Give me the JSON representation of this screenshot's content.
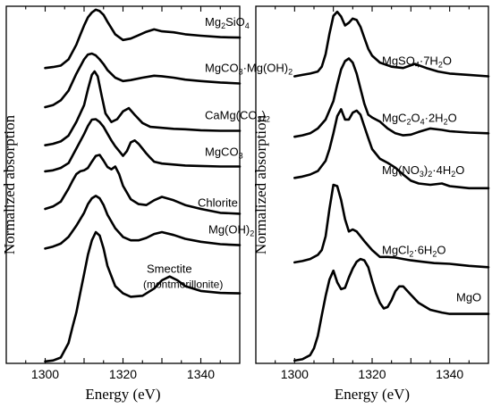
{
  "chart_data": [
    {
      "type": "line",
      "title": "",
      "xlabel": "Energy (eV)",
      "ylabel": "Normalized absorption",
      "xlim": [
        1290,
        1350
      ],
      "ylim": [
        0,
        7.4
      ],
      "xticks": [
        1300,
        1320,
        1340
      ],
      "xtick_labels": [
        "1300",
        "1320",
        "1340"
      ],
      "yticks": false,
      "grid": false,
      "legend": "none",
      "series_labels_position": "right of each curve",
      "series": [
        {
          "label": {
            "parts": [
              {
                "t": "Mg"
              },
              {
                "t": "2",
                "sub": true
              },
              {
                "t": "SiO"
              },
              {
                "t": "4",
                "sub": true
              }
            ]
          },
          "x": [
            1300,
            1302,
            1304,
            1306,
            1308,
            1309,
            1310,
            1311,
            1312,
            1313,
            1314,
            1315,
            1316,
            1318,
            1320,
            1322,
            1324,
            1326,
            1328,
            1330,
            1333,
            1336,
            1340,
            1345,
            1350
          ],
          "y": [
            6.12,
            6.14,
            6.17,
            6.3,
            6.6,
            6.8,
            7.0,
            7.17,
            7.27,
            7.33,
            7.3,
            7.22,
            7.08,
            6.82,
            6.7,
            6.73,
            6.8,
            6.87,
            6.92,
            6.88,
            6.86,
            6.82,
            6.79,
            6.76,
            6.75
          ]
        },
        {
          "label": {
            "parts": [
              {
                "t": "MgCO"
              },
              {
                "t": "3",
                "sub": true
              },
              {
                "t": "·Mg(OH)"
              },
              {
                "t": "2",
                "sub": true
              }
            ]
          },
          "x": [
            1300,
            1302,
            1304,
            1306,
            1308,
            1310,
            1311,
            1312,
            1313,
            1314,
            1315,
            1316,
            1318,
            1320,
            1322,
            1325,
            1328,
            1330,
            1333,
            1336,
            1340,
            1345,
            1350
          ],
          "y": [
            5.31,
            5.35,
            5.45,
            5.65,
            6.0,
            6.3,
            6.4,
            6.42,
            6.38,
            6.3,
            6.2,
            6.08,
            5.92,
            5.85,
            5.87,
            5.92,
            5.96,
            5.95,
            5.92,
            5.88,
            5.85,
            5.82,
            5.8
          ]
        },
        {
          "label": {
            "parts": [
              {
                "t": "CaMg(CO"
              },
              {
                "t": "3",
                "sub": true
              },
              {
                "t": ")"
              },
              {
                "t": "2",
                "sub": true
              }
            ]
          },
          "x": [
            1300,
            1302,
            1304,
            1306,
            1308,
            1310,
            1311,
            1312,
            1312.7,
            1313.5,
            1314.5,
            1315.5,
            1317,
            1318.5,
            1320,
            1321.5,
            1323,
            1325,
            1327,
            1330,
            1333,
            1336,
            1340,
            1345,
            1350
          ],
          "y": [
            4.52,
            4.55,
            4.6,
            4.72,
            5.0,
            5.35,
            5.68,
            5.98,
            6.05,
            5.95,
            5.55,
            5.18,
            5.0,
            5.06,
            5.22,
            5.29,
            5.15,
            4.98,
            4.9,
            4.88,
            4.86,
            4.85,
            4.83,
            4.82,
            4.82
          ]
        },
        {
          "label": {
            "parts": [
              {
                "t": "MgCO"
              },
              {
                "t": "3",
                "sub": true
              }
            ]
          },
          "x": [
            1300,
            1302,
            1304,
            1306,
            1308,
            1310,
            1311,
            1312,
            1313,
            1314,
            1315,
            1316,
            1317,
            1318,
            1319,
            1320,
            1321,
            1322,
            1323,
            1324,
            1325,
            1326,
            1327,
            1328,
            1330,
            1333,
            1336,
            1340,
            1345,
            1350
          ],
          "y": [
            3.98,
            4.0,
            4.05,
            4.15,
            4.45,
            4.75,
            4.92,
            5.05,
            5.06,
            5.0,
            4.9,
            4.76,
            4.62,
            4.5,
            4.4,
            4.3,
            4.4,
            4.58,
            4.62,
            4.55,
            4.45,
            4.35,
            4.26,
            4.18,
            4.14,
            4.12,
            4.1,
            4.09,
            4.08,
            4.08
          ]
        },
        {
          "label": {
            "parts": [
              {
                "t": "Chlorite"
              }
            ]
          },
          "x": [
            1300,
            1302,
            1304,
            1306,
            1307,
            1308,
            1309,
            1310,
            1311,
            1312,
            1313,
            1314,
            1315,
            1316,
            1317,
            1318,
            1319,
            1320,
            1322,
            1324,
            1326,
            1328,
            1330,
            1333,
            1336,
            1340,
            1345,
            1350
          ],
          "y": [
            3.2,
            3.25,
            3.35,
            3.62,
            3.78,
            3.92,
            3.98,
            4.0,
            4.05,
            4.18,
            4.3,
            4.32,
            4.2,
            4.07,
            4.02,
            4.08,
            3.92,
            3.68,
            3.4,
            3.3,
            3.28,
            3.38,
            3.45,
            3.38,
            3.28,
            3.2,
            3.12,
            3.1
          ]
        },
        {
          "label": {
            "parts": [
              {
                "t": "Mg(OH)"
              },
              {
                "t": "2",
                "sub": true
              }
            ]
          },
          "x": [
            1300,
            1302,
            1304,
            1306,
            1308,
            1310,
            1311,
            1312,
            1313,
            1314,
            1315,
            1316,
            1318,
            1320,
            1322,
            1324,
            1326,
            1328,
            1330,
            1333,
            1336,
            1340,
            1345,
            1350
          ],
          "y": [
            2.38,
            2.42,
            2.48,
            2.62,
            2.85,
            3.12,
            3.3,
            3.42,
            3.47,
            3.42,
            3.28,
            3.08,
            2.8,
            2.62,
            2.55,
            2.55,
            2.6,
            2.68,
            2.72,
            2.66,
            2.58,
            2.52,
            2.47,
            2.45
          ]
        },
        {
          "label": {
            "parts": [
              {
                "t": "Smectite"
              },
              {
                "t": "(montmorillonite)",
                "br": true
              }
            ]
          },
          "x": [
            1300,
            1302,
            1304,
            1306,
            1307,
            1308,
            1309,
            1310,
            1311,
            1312,
            1313,
            1314,
            1315,
            1316,
            1318,
            1320,
            1322,
            1325,
            1328,
            1330,
            1332,
            1334,
            1336,
            1340,
            1345,
            1350
          ],
          "y": [
            0.04,
            0.06,
            0.12,
            0.42,
            0.75,
            1.05,
            1.45,
            1.85,
            2.25,
            2.55,
            2.72,
            2.65,
            2.38,
            2.02,
            1.6,
            1.45,
            1.38,
            1.4,
            1.55,
            1.72,
            1.8,
            1.72,
            1.6,
            1.5,
            1.46,
            1.45
          ]
        }
      ]
    },
    {
      "type": "line",
      "title": "",
      "xlabel": "Energy (eV)",
      "ylabel": "Normalized absorption",
      "xlim": [
        1290,
        1350
      ],
      "ylim": [
        0,
        5.2
      ],
      "xticks": [
        1300,
        1320,
        1340
      ],
      "xtick_labels": [
        "1300",
        "1320",
        "1340"
      ],
      "yticks": false,
      "grid": false,
      "legend": "none",
      "series_labels_position": "right of each curve",
      "series": [
        {
          "label": {
            "parts": [
              {
                "t": "MgSO"
              },
              {
                "t": "4",
                "sub": true
              },
              {
                "t": "·7H"
              },
              {
                "t": "2",
                "sub": true
              },
              {
                "t": "O"
              }
            ]
          },
          "x": [
            1300,
            1302,
            1304,
            1306,
            1307,
            1308,
            1309,
            1310,
            1311,
            1312,
            1313,
            1314,
            1315,
            1316,
            1317,
            1318,
            1319,
            1320,
            1322,
            1325,
            1328,
            1331,
            1334,
            1337,
            1340,
            1345,
            1350
          ],
          "y": [
            4.18,
            4.2,
            4.22,
            4.25,
            4.32,
            4.5,
            4.8,
            5.06,
            5.12,
            5.05,
            4.92,
            4.96,
            5.02,
            5.0,
            4.9,
            4.74,
            4.58,
            4.48,
            4.38,
            4.32,
            4.3,
            4.36,
            4.3,
            4.25,
            4.22,
            4.2,
            4.18
          ]
        },
        {
          "label": {
            "parts": [
              {
                "t": "MgC"
              },
              {
                "t": "2",
                "sub": true
              },
              {
                "t": "O"
              },
              {
                "t": "4",
                "sub": true
              },
              {
                "t": "·2H"
              },
              {
                "t": "2",
                "sub": true
              },
              {
                "t": "O"
              }
            ]
          },
          "x": [
            1300,
            1302,
            1304,
            1306,
            1308,
            1310,
            1311,
            1312,
            1313,
            1314,
            1315,
            1316,
            1317,
            1318,
            1319,
            1320,
            1322,
            1324,
            1326,
            1328,
            1330,
            1332,
            1335,
            1338,
            1340,
            1345,
            1350
          ],
          "y": [
            3.3,
            3.32,
            3.35,
            3.42,
            3.55,
            3.82,
            4.06,
            4.28,
            4.4,
            4.44,
            4.38,
            4.22,
            4.0,
            3.78,
            3.62,
            3.58,
            3.52,
            3.42,
            3.35,
            3.32,
            3.33,
            3.37,
            3.42,
            3.4,
            3.38,
            3.36,
            3.35
          ]
        },
        {
          "label": {
            "parts": [
              {
                "t": "Mg(NO"
              },
              {
                "t": "3",
                "sub": true
              },
              {
                "t": ")"
              },
              {
                "t": "2",
                "sub": true
              },
              {
                "t": "·4H"
              },
              {
                "t": "2",
                "sub": true
              },
              {
                "t": "O"
              }
            ]
          },
          "x": [
            1300,
            1302,
            1304,
            1306,
            1308,
            1309,
            1310,
            1311,
            1312,
            1313,
            1314,
            1315,
            1316,
            1317,
            1318,
            1319,
            1320,
            1322,
            1324,
            1326,
            1328,
            1330,
            1332,
            1335,
            1338,
            1340,
            1345,
            1350
          ],
          "y": [
            2.7,
            2.72,
            2.75,
            2.8,
            2.95,
            3.12,
            3.35,
            3.6,
            3.7,
            3.55,
            3.55,
            3.65,
            3.68,
            3.62,
            3.45,
            3.28,
            3.12,
            2.98,
            2.92,
            2.85,
            2.75,
            2.66,
            2.62,
            2.6,
            2.62,
            2.58,
            2.55,
            2.55
          ]
        },
        {
          "label": {
            "parts": [
              {
                "t": "MgCl"
              },
              {
                "t": "2",
                "sub": true
              },
              {
                "t": "·6H"
              },
              {
                "t": "2",
                "sub": true
              },
              {
                "t": "O"
              }
            ]
          },
          "x": [
            1300,
            1302,
            1304,
            1306,
            1307,
            1308,
            1309,
            1310,
            1311,
            1312,
            1313,
            1314,
            1315,
            1316,
            1318,
            1320,
            1322,
            1324,
            1326,
            1328,
            1330,
            1333,
            1336,
            1340,
            1345,
            1350
          ],
          "y": [
            1.47,
            1.49,
            1.52,
            1.58,
            1.65,
            1.85,
            2.25,
            2.6,
            2.58,
            2.38,
            2.1,
            1.92,
            1.95,
            1.92,
            1.78,
            1.65,
            1.55,
            1.55,
            1.54,
            1.52,
            1.5,
            1.48,
            1.46,
            1.45,
            1.42,
            1.4
          ]
        },
        {
          "label": {
            "parts": [
              {
                "t": "MgO"
              }
            ]
          },
          "x": [
            1300,
            1302,
            1304,
            1305,
            1306,
            1307,
            1308,
            1309,
            1310,
            1311,
            1312,
            1313,
            1314,
            1315,
            1316,
            1317,
            1318,
            1319,
            1320,
            1321,
            1322,
            1323,
            1324,
            1325,
            1326,
            1327,
            1328,
            1330,
            1332,
            1335,
            1338,
            1340,
            1345,
            1350
          ],
          "y": [
            0.04,
            0.06,
            0.12,
            0.22,
            0.4,
            0.7,
            0.98,
            1.22,
            1.35,
            1.18,
            1.08,
            1.1,
            1.25,
            1.38,
            1.48,
            1.52,
            1.5,
            1.4,
            1.2,
            1.02,
            0.88,
            0.8,
            0.82,
            0.92,
            1.05,
            1.12,
            1.12,
            1.0,
            0.88,
            0.78,
            0.74,
            0.72,
            0.72,
            0.72
          ]
        }
      ]
    }
  ]
}
